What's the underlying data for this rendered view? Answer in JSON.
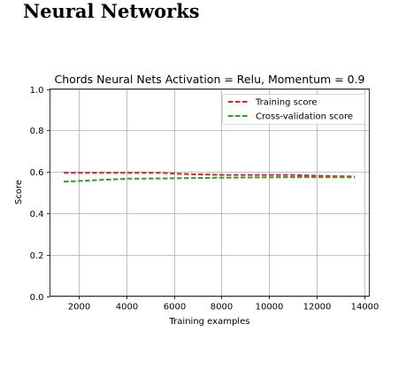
{
  "document": {
    "heading": "Neural Networks"
  },
  "chart_data": {
    "type": "line",
    "title": "Chords Neural Nets Activation = Relu, Momentum = 0.9",
    "xlabel": "Training examples",
    "ylabel": "Score",
    "xlim": [
      800,
      14200
    ],
    "ylim": [
      0.0,
      1.0
    ],
    "xticks": [
      2000,
      4000,
      6000,
      8000,
      10000,
      12000,
      14000
    ],
    "xtick_labels": [
      "2000",
      "4000",
      "6000",
      "8000",
      "10000",
      "12000",
      "14000"
    ],
    "yticks": [
      0.0,
      0.2,
      0.4,
      0.6,
      0.8,
      1.0
    ],
    "ytick_labels": [
      "0.0",
      "0.2",
      "0.4",
      "0.6",
      "0.8",
      "1.0"
    ],
    "grid": true,
    "legend_position": "top-right",
    "x": [
      1380,
      2740,
      4090,
      5450,
      6810,
      8170,
      9520,
      10880,
      12240,
      13590
    ],
    "series": [
      {
        "name": "Training score",
        "color": "#d62728",
        "linestyle": "dashed",
        "values": [
          0.595,
          0.595,
          0.595,
          0.595,
          0.588,
          0.585,
          0.585,
          0.585,
          0.58,
          0.577
        ]
      },
      {
        "name": "Cross-validation score",
        "color": "#2ca02c",
        "linestyle": "dashed",
        "values": [
          0.552,
          0.56,
          0.567,
          0.568,
          0.57,
          0.572,
          0.573,
          0.575,
          0.575,
          0.573
        ]
      }
    ]
  }
}
